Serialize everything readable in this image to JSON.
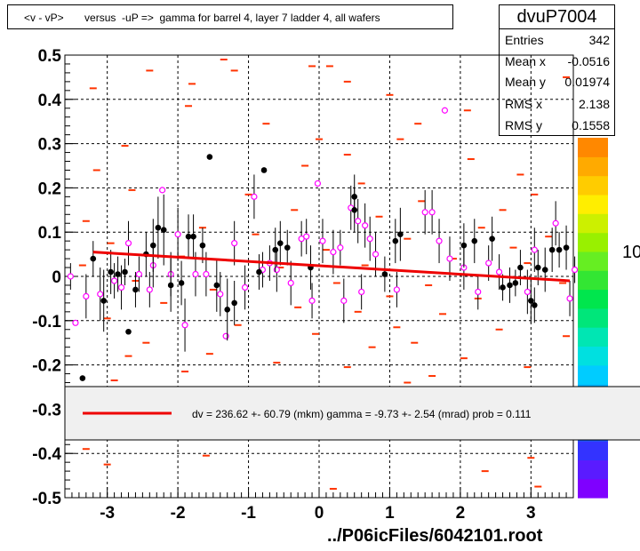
{
  "title": "<v - vP>       versus  -uP =>  gamma for barrel 4, layer 7 ladder 4, all wafers",
  "stats": {
    "name": "dvuP7004",
    "rows": [
      {
        "label": "Entries",
        "value": "342"
      },
      {
        "label": "Mean x",
        "value": "-0.0516"
      },
      {
        "label": "Mean y",
        "value": "0.01974"
      },
      {
        "label": "RMS x",
        "value": "2.138"
      },
      {
        "label": "RMS y",
        "value": "0.1558"
      }
    ]
  },
  "footer": "../P06icFiles/6042101.root",
  "colors": {
    "fit_line": "#ee0000",
    "dash_marker": "#ff3300",
    "open_marker": "#ff00ff",
    "filled_marker": "#000000",
    "legend_bg": "#f0f0f0"
  },
  "chart_data": {
    "type": "scatter",
    "xlim": [
      -3.6,
      3.6
    ],
    "ylim": [
      -0.5,
      0.5
    ],
    "xticks": [
      "-3",
      "-2",
      "-1",
      "0",
      "1",
      "2",
      "3"
    ],
    "xtick_values": [
      -3,
      -2,
      -1,
      0,
      1,
      2,
      3
    ],
    "yticks": [
      "0.5",
      "0.4",
      "0.3",
      "0.2",
      "0.1",
      "0",
      "-0.1",
      "-0.2",
      "-0.3",
      "-0.4",
      "-0.5"
    ],
    "ytick_values": [
      0.5,
      0.4,
      0.3,
      0.2,
      0.1,
      0,
      -0.1,
      -0.2,
      -0.3,
      -0.4,
      -0.5
    ],
    "grid": true,
    "fit_line": {
      "x": [
        -3.2,
        3.55
      ],
      "y": [
        0.055,
        -0.01
      ]
    },
    "legend_text": "dv =  236.62 +- 60.79 (mkm) gamma =   -9.73 +-  2.54 (mrad) prob = 0.111",
    "palette_labels": [
      "10",
      "10"
    ],
    "filled_points": [
      {
        "x": -3.35,
        "y": -0.23,
        "e": 0
      },
      {
        "x": -3.2,
        "y": 0.04,
        "e": 0.04
      },
      {
        "x": -3.05,
        "y": -0.055,
        "e": 0.07
      },
      {
        "x": -2.95,
        "y": 0.01,
        "e": 0.05
      },
      {
        "x": -2.85,
        "y": 0.005,
        "e": 0.04
      },
      {
        "x": -2.75,
        "y": 0.01,
        "e": 0.03
      },
      {
        "x": -2.7,
        "y": -0.125,
        "e": 0
      },
      {
        "x": -2.6,
        "y": -0.03,
        "e": 0.04
      },
      {
        "x": -2.45,
        "y": 0.05,
        "e": 0.05
      },
      {
        "x": -2.35,
        "y": 0.07,
        "e": 0.06
      },
      {
        "x": -2.28,
        "y": 0.11,
        "e": 0.07
      },
      {
        "x": -2.2,
        "y": 0.105,
        "e": 0.08
      },
      {
        "x": -2.1,
        "y": -0.02,
        "e": 0.06
      },
      {
        "x": -1.95,
        "y": -0.015,
        "e": 0.05
      },
      {
        "x": -1.85,
        "y": 0.09,
        "e": 0.05
      },
      {
        "x": -1.78,
        "y": 0.09,
        "e": 0.05
      },
      {
        "x": -1.65,
        "y": 0.07,
        "e": 0.04
      },
      {
        "x": -1.55,
        "y": 0.27,
        "e": 0
      },
      {
        "x": -1.45,
        "y": -0.02,
        "e": 0.06
      },
      {
        "x": -1.3,
        "y": -0.075,
        "e": 0.07
      },
      {
        "x": -1.2,
        "y": -0.06,
        "e": 0.05
      },
      {
        "x": -0.85,
        "y": 0.01,
        "e": 0.04
      },
      {
        "x": -0.78,
        "y": 0.24,
        "e": 0
      },
      {
        "x": -0.62,
        "y": 0.06,
        "e": 0.05
      },
      {
        "x": -0.55,
        "y": 0.075,
        "e": 0.05
      },
      {
        "x": -0.45,
        "y": 0.065,
        "e": 0.04
      },
      {
        "x": -0.12,
        "y": 0.02,
        "e": 0.05
      },
      {
        "x": 0.5,
        "y": 0.15,
        "e": 0.05
      },
      {
        "x": 0.5,
        "y": 0.18,
        "e": 0.05
      },
      {
        "x": 0.93,
        "y": 0.005,
        "e": 0.04
      },
      {
        "x": 1.08,
        "y": 0.08,
        "e": 0.05
      },
      {
        "x": 1.15,
        "y": 0.095,
        "e": 0.06
      },
      {
        "x": 2.05,
        "y": 0.07,
        "e": 0.05
      },
      {
        "x": 2.2,
        "y": 0.08,
        "e": 0.05
      },
      {
        "x": 2.45,
        "y": 0.085,
        "e": 0.05
      },
      {
        "x": 2.6,
        "y": -0.025,
        "e": 0.03
      },
      {
        "x": 2.7,
        "y": -0.02,
        "e": 0.04
      },
      {
        "x": 2.78,
        "y": -0.015,
        "e": 0.03
      },
      {
        "x": 2.85,
        "y": 0.02,
        "e": 0.04
      },
      {
        "x": 3.0,
        "y": -0.055,
        "e": 0.05
      },
      {
        "x": 3.05,
        "y": -0.065,
        "e": 0.04
      },
      {
        "x": 3.1,
        "y": 0.02,
        "e": 0.04
      },
      {
        "x": 3.2,
        "y": 0.015,
        "e": 0.05
      },
      {
        "x": 3.3,
        "y": 0.06,
        "e": 0.05
      },
      {
        "x": 3.4,
        "y": 0.06,
        "e": 0.04
      },
      {
        "x": 3.5,
        "y": 0.065,
        "e": 0.05
      }
    ],
    "open_points": [
      {
        "x": -3.52,
        "y": 0.0,
        "e": 0.03
      },
      {
        "x": -3.45,
        "y": -0.105,
        "e": 0
      },
      {
        "x": -3.3,
        "y": -0.045,
        "e": 0.05
      },
      {
        "x": -3.1,
        "y": -0.04,
        "e": 0.06
      },
      {
        "x": -2.9,
        "y": -0.01,
        "e": 0.04
      },
      {
        "x": -2.8,
        "y": -0.025,
        "e": 0.05
      },
      {
        "x": -2.7,
        "y": 0.075,
        "e": 0.05
      },
      {
        "x": -2.55,
        "y": 0.005,
        "e": 0.04
      },
      {
        "x": -2.4,
        "y": -0.03,
        "e": 0.04
      },
      {
        "x": -2.35,
        "y": 0.025,
        "e": 0.05
      },
      {
        "x": -2.22,
        "y": 0.195,
        "e": 0
      },
      {
        "x": -2.1,
        "y": 0.005,
        "e": 0.05
      },
      {
        "x": -2.0,
        "y": 0.095,
        "e": 0.06
      },
      {
        "x": -1.9,
        "y": -0.11,
        "e": 0.06
      },
      {
        "x": -1.75,
        "y": 0.005,
        "e": 0.05
      },
      {
        "x": -1.6,
        "y": 0.005,
        "e": 0.05
      },
      {
        "x": -1.4,
        "y": -0.04,
        "e": 0.05
      },
      {
        "x": -1.32,
        "y": -0.135,
        "e": 0
      },
      {
        "x": -1.2,
        "y": 0.075,
        "e": 0.05
      },
      {
        "x": -1.05,
        "y": -0.025,
        "e": 0.05
      },
      {
        "x": -0.92,
        "y": 0.18,
        "e": 0.05
      },
      {
        "x": -0.8,
        "y": 0.015,
        "e": 0.04
      },
      {
        "x": -0.7,
        "y": 0.03,
        "e": 0.04
      },
      {
        "x": -0.6,
        "y": 0.015,
        "e": 0.05
      },
      {
        "x": -0.4,
        "y": -0.015,
        "e": 0.05
      },
      {
        "x": -0.25,
        "y": 0.085,
        "e": 0.04
      },
      {
        "x": -0.18,
        "y": 0.09,
        "e": 0.04
      },
      {
        "x": -0.1,
        "y": -0.055,
        "e": 0.04
      },
      {
        "x": 0.05,
        "y": 0.08,
        "e": 0.05
      },
      {
        "x": -0.02,
        "y": 0.21,
        "e": 0
      },
      {
        "x": 0.2,
        "y": 0.055,
        "e": 0.05
      },
      {
        "x": 0.3,
        "y": 0.065,
        "e": 0.04
      },
      {
        "x": 0.35,
        "y": -0.055,
        "e": 0.05
      },
      {
        "x": 0.45,
        "y": 0.155,
        "e": 0.05
      },
      {
        "x": 0.55,
        "y": 0.125,
        "e": 0.05
      },
      {
        "x": 0.65,
        "y": 0.115,
        "e": 0.05
      },
      {
        "x": 0.6,
        "y": -0.035,
        "e": 0.04
      },
      {
        "x": 0.72,
        "y": 0.085,
        "e": 0.05
      },
      {
        "x": 0.8,
        "y": 0.05,
        "e": 0.05
      },
      {
        "x": 1.1,
        "y": -0.03,
        "e": 0.04
      },
      {
        "x": 1.5,
        "y": 0.145,
        "e": 0.05
      },
      {
        "x": 1.6,
        "y": 0.145,
        "e": 0.05
      },
      {
        "x": 1.7,
        "y": 0.08,
        "e": 0.05
      },
      {
        "x": 1.78,
        "y": 0.375,
        "e": 0
      },
      {
        "x": 1.85,
        "y": 0.04,
        "e": 0.05
      },
      {
        "x": 2.05,
        "y": 0.02,
        "e": 0.05
      },
      {
        "x": 2.25,
        "y": -0.035,
        "e": 0.04
      },
      {
        "x": 2.4,
        "y": 0.03,
        "e": 0.04
      },
      {
        "x": 2.55,
        "y": 0.01,
        "e": 0.04
      },
      {
        "x": 2.95,
        "y": -0.035,
        "e": 0.05
      },
      {
        "x": 3.05,
        "y": 0.06,
        "e": 0.05
      },
      {
        "x": 3.35,
        "y": 0.12,
        "e": 0.05
      },
      {
        "x": 3.55,
        "y": -0.05,
        "e": 0.04
      },
      {
        "x": 3.62,
        "y": 0.015,
        "e": 0.03
      }
    ],
    "dash_points": [
      {
        "x": -2.4,
        "y": 0.465
      },
      {
        "x": -1.2,
        "y": 0.465
      },
      {
        "x": -0.1,
        "y": 0.475
      },
      {
        "x": 0.15,
        "y": 0.475
      },
      {
        "x": -1.8,
        "y": 0.435
      },
      {
        "x": -3.2,
        "y": 0.425
      },
      {
        "x": -1.85,
        "y": 0.385
      },
      {
        "x": 2.1,
        "y": 0.375
      },
      {
        "x": 0.4,
        "y": 0.44
      },
      {
        "x": 1.0,
        "y": 0.41
      },
      {
        "x": -0.75,
        "y": 0.345
      },
      {
        "x": 1.4,
        "y": 0.345
      },
      {
        "x": 0.0,
        "y": 0.31
      },
      {
        "x": 1.15,
        "y": 0.31
      },
      {
        "x": -2.75,
        "y": 0.295
      },
      {
        "x": 0.4,
        "y": 0.275
      },
      {
        "x": 2.15,
        "y": 0.265
      },
      {
        "x": -0.2,
        "y": 0.25
      },
      {
        "x": -3.15,
        "y": 0.24
      },
      {
        "x": 2.85,
        "y": 0.23
      },
      {
        "x": 0.6,
        "y": 0.21
      },
      {
        "x": -2.65,
        "y": 0.195
      },
      {
        "x": -1.0,
        "y": 0.185
      },
      {
        "x": 1.45,
        "y": 0.17
      },
      {
        "x": 3.05,
        "y": 0.185
      },
      {
        "x": -0.35,
        "y": 0.15
      },
      {
        "x": 2.6,
        "y": 0.15
      },
      {
        "x": -3.3,
        "y": 0.125
      },
      {
        "x": 0.85,
        "y": 0.135
      },
      {
        "x": -1.65,
        "y": 0.11
      },
      {
        "x": 2.3,
        "y": 0.11
      },
      {
        "x": -0.9,
        "y": 0.095
      },
      {
        "x": 1.25,
        "y": 0.085
      },
      {
        "x": 3.25,
        "y": 0.09
      },
      {
        "x": -2.95,
        "y": 0.075
      },
      {
        "x": 0.1,
        "y": 0.06
      },
      {
        "x": 2.75,
        "y": 0.065
      },
      {
        "x": -1.95,
        "y": 0.045
      },
      {
        "x": 1.9,
        "y": 0.04
      },
      {
        "x": -3.35,
        "y": 0.025
      },
      {
        "x": -0.55,
        "y": 0.02
      },
      {
        "x": 0.65,
        "y": 0.025
      },
      {
        "x": 2.95,
        "y": 0.03
      },
      {
        "x": -2.6,
        "y": -0.01
      },
      {
        "x": 0.25,
        "y": -0.015
      },
      {
        "x": 1.55,
        "y": -0.02
      },
      {
        "x": 3.45,
        "y": -0.015
      },
      {
        "x": -1.5,
        "y": -0.03
      },
      {
        "x": 1.0,
        "y": -0.045
      },
      {
        "x": 2.25,
        "y": -0.05
      },
      {
        "x": -2.2,
        "y": -0.06
      },
      {
        "x": -0.3,
        "y": -0.07
      },
      {
        "x": 0.55,
        "y": -0.08
      },
      {
        "x": 1.75,
        "y": -0.085
      },
      {
        "x": -3.0,
        "y": -0.095
      },
      {
        "x": -1.15,
        "y": -0.11
      },
      {
        "x": 1.1,
        "y": -0.115
      },
      {
        "x": 2.55,
        "y": -0.12
      },
      {
        "x": -0.05,
        "y": -0.13
      },
      {
        "x": 3.5,
        "y": -0.135
      },
      {
        "x": -2.45,
        "y": -0.15
      },
      {
        "x": 0.75,
        "y": -0.16
      },
      {
        "x": 1.35,
        "y": -0.15
      },
      {
        "x": -1.55,
        "y": -0.175
      },
      {
        "x": 2.05,
        "y": -0.185
      },
      {
        "x": -0.6,
        "y": -0.195
      },
      {
        "x": -2.7,
        "y": -0.18
      },
      {
        "x": 0.4,
        "y": -0.205
      },
      {
        "x": 2.95,
        "y": -0.205
      },
      {
        "x": -1.9,
        "y": -0.215
      },
      {
        "x": 1.6,
        "y": -0.225
      },
      {
        "x": -2.9,
        "y": -0.235
      },
      {
        "x": 1.25,
        "y": -0.24
      },
      {
        "x": -3.3,
        "y": -0.39
      },
      {
        "x": -1.6,
        "y": -0.405
      },
      {
        "x": 3.0,
        "y": -0.41
      },
      {
        "x": -3.0,
        "y": -0.425
      },
      {
        "x": 2.35,
        "y": -0.44
      },
      {
        "x": 3.1,
        "y": -0.475
      },
      {
        "x": 0.2,
        "y": -0.48
      },
      {
        "x": 3.5,
        "y": 0.45
      },
      {
        "x": -1.35,
        "y": 0.49
      }
    ]
  }
}
